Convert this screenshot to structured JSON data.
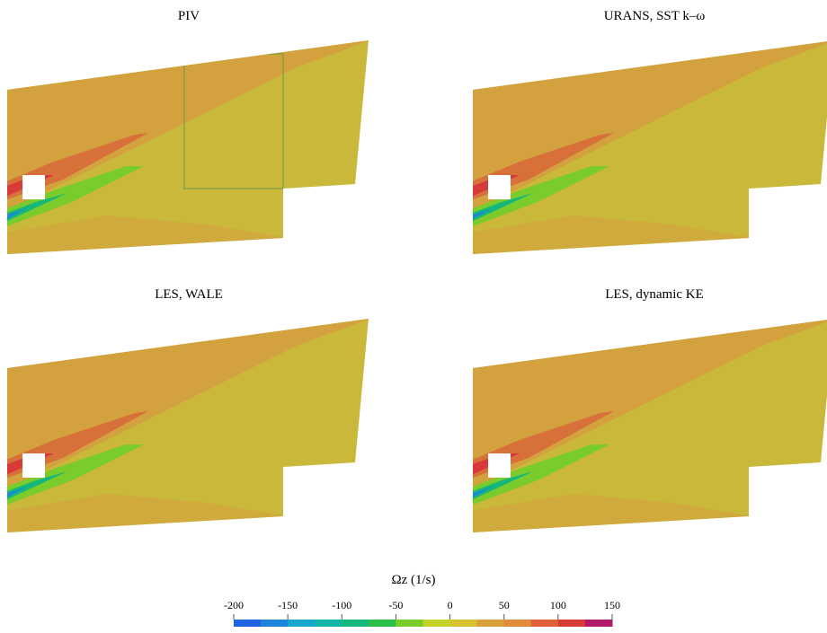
{
  "chart_data": {
    "type": "contour",
    "panels": [
      {
        "title": "PIV"
      },
      {
        "title": "URANS, SST k–ω"
      },
      {
        "title": "LES, WALE"
      },
      {
        "title": "LES, dynamic KE"
      }
    ],
    "colorbar": {
      "label": "Ωz  (1/s)",
      "clim": [
        -200,
        150
      ],
      "ticks": [
        -200,
        -150,
        -100,
        -50,
        0,
        50,
        100,
        150
      ],
      "colors": [
        "#1f63e0",
        "#1b86da",
        "#17a6cf",
        "#14b5a9",
        "#16b77a",
        "#2cbf48",
        "#79cc2c",
        "#c2d42a",
        "#d8c12e",
        "#d8a03a",
        "#e08a3c",
        "#e0603a",
        "#d83a3a",
        "#b01a6a"
      ]
    }
  }
}
